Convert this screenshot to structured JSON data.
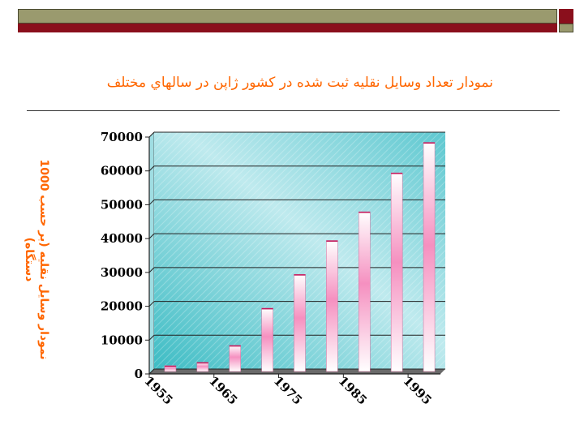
{
  "slide": {
    "title": "نمودار تعداد وسايل نقليه ثبت شده در کشور ژاپن در سالهاي مختلف"
  },
  "colors": {
    "accent_olive": "#9a9a6e",
    "accent_maroon": "#8a0f1c",
    "title_orange": "#ff6600"
  },
  "chart_data": {
    "type": "bar",
    "title": "",
    "xlabel": "",
    "ylabel": "نمودار وسايل نقليه (بر حسب 1000 دستگاه)",
    "categories": [
      "1955",
      "1960",
      "1965",
      "1970",
      "1975",
      "1980",
      "1985",
      "1990",
      "1995"
    ],
    "x_tick_labels": [
      "1955",
      "1965",
      "1975",
      "1985",
      "1995"
    ],
    "values": [
      1000,
      2000,
      7000,
      18000,
      28000,
      38000,
      46500,
      58000,
      67000
    ],
    "ylim": [
      0,
      70000
    ],
    "y_ticks": [
      "0",
      "10000",
      "20000",
      "30000",
      "40000",
      "50000",
      "60000",
      "70000"
    ],
    "grid": true,
    "legend": "none"
  }
}
